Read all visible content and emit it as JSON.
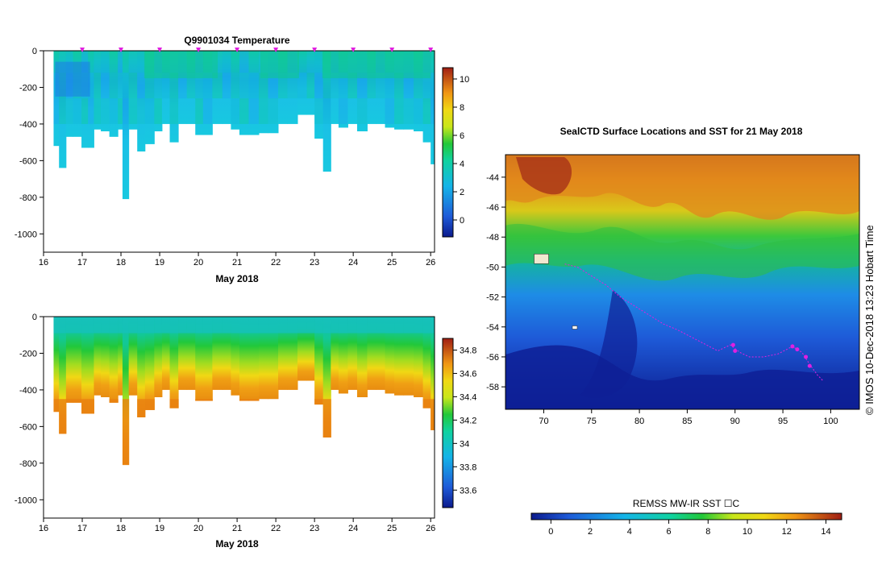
{
  "chart_data": [
    {
      "type": "heatmap",
      "title": "Q9901034  Temperature",
      "xlabel": "May 2018",
      "ylabel": "",
      "xlim": [
        16,
        26.1
      ],
      "ylim": [
        -1100,
        0
      ],
      "xticks": [
        "16",
        "17",
        "18",
        "19",
        "20",
        "21",
        "22",
        "23",
        "24",
        "25",
        "26"
      ],
      "yticks": [
        "0",
        "-200",
        "-400",
        "-600",
        "-800",
        "-1000"
      ],
      "colorbar": {
        "range": [
          -1.2,
          10.8
        ],
        "ticks": [
          "0",
          "2",
          "4",
          "6",
          "8",
          "10"
        ]
      },
      "profile_times": [
        16.26,
        16.4,
        16.58,
        16.76,
        16.98,
        17.15,
        17.3,
        17.48,
        17.7,
        17.92,
        18.04,
        18.2,
        18.42,
        18.62,
        18.86,
        19.06,
        19.26,
        19.48,
        19.7,
        19.92,
        20.12,
        20.36,
        20.62,
        20.84,
        21.06,
        21.3,
        21.56,
        21.8,
        22.06,
        22.3,
        22.56,
        22.8,
        23.0,
        23.22,
        23.42,
        23.62,
        23.86,
        24.1,
        24.36,
        24.58,
        24.82,
        25.06,
        25.3,
        25.56,
        25.8,
        26.0
      ],
      "max_depths": [
        -520,
        -640,
        -470,
        -470,
        -530,
        -530,
        -430,
        -440,
        -470,
        -430,
        -810,
        -430,
        -550,
        -510,
        -440,
        -400,
        -500,
        -400,
        -400,
        -460,
        -460,
        -400,
        -400,
        -430,
        -460,
        -460,
        -450,
        -450,
        -400,
        -400,
        -350,
        -350,
        -480,
        -660,
        -400,
        -420,
        -400,
        -440,
        -400,
        -400,
        -420,
        -430,
        -430,
        -440,
        -500,
        -620
      ],
      "surface_markers": [
        17,
        18,
        19,
        20,
        21,
        22,
        23,
        24,
        25,
        26
      ]
    },
    {
      "type": "heatmap",
      "title": "",
      "xlabel": "May 2018",
      "ylabel": "",
      "xlim": [
        16,
        26.1
      ],
      "ylim": [
        -1100,
        0
      ],
      "xticks": [
        "16",
        "17",
        "18",
        "19",
        "20",
        "21",
        "22",
        "23",
        "24",
        "25",
        "26"
      ],
      "yticks": [
        "0",
        "-200",
        "-400",
        "-600",
        "-800",
        "-1000"
      ],
      "colorbar": {
        "range": [
          33.45,
          34.9
        ],
        "ticks": [
          "33.6",
          "33.8",
          "34",
          "34.2",
          "34.4",
          "34.6",
          "34.8"
        ]
      }
    },
    {
      "type": "heatmap",
      "title": "SealCTD Surface Locations and SST for 21 May 2018",
      "xlabel": "",
      "ylabel": "",
      "xlim": [
        66,
        103
      ],
      "ylim": [
        -59.5,
        -42.5
      ],
      "xticks": [
        "70",
        "75",
        "80",
        "85",
        "90",
        "95",
        "100"
      ],
      "yticks": [
        "-44",
        "-46",
        "-48",
        "-50",
        "-52",
        "-54",
        "-56",
        "-58"
      ],
      "colorbar": {
        "label": "REMSS MW-IR SST ☐C",
        "range": [
          -1,
          14.8
        ],
        "ticks": [
          "0",
          "2",
          "4",
          "6",
          "8",
          "10",
          "12",
          "14"
        ]
      },
      "track": [
        [
          72.2,
          -49.8
        ],
        [
          73.5,
          -50.0
        ],
        [
          75,
          -50.6
        ],
        [
          76.5,
          -51.2
        ],
        [
          78,
          -52
        ],
        [
          79.5,
          -52.6
        ],
        [
          81,
          -53.2
        ],
        [
          82.5,
          -53.8
        ],
        [
          84,
          -54.2
        ],
        [
          85.5,
          -54.7
        ],
        [
          87,
          -55.2
        ],
        [
          88.2,
          -55.6
        ],
        [
          89.5,
          -55.2
        ],
        [
          90.5,
          -55.7
        ],
        [
          91.5,
          -56.0
        ],
        [
          93,
          -56.0
        ],
        [
          94.5,
          -55.8
        ],
        [
          96,
          -55.3
        ],
        [
          97,
          -55.7
        ],
        [
          97.8,
          -56.5
        ],
        [
          98.6,
          -57.2
        ],
        [
          99.2,
          -57.6
        ]
      ],
      "track_points": [
        [
          89.8,
          -55.2
        ],
        [
          90.0,
          -55.6
        ],
        [
          96.0,
          -55.3
        ],
        [
          96.5,
          -55.5
        ],
        [
          97.4,
          -56.0
        ],
        [
          97.8,
          -56.6
        ]
      ],
      "island_label_points": [
        [
          69.5,
          -49.4
        ],
        [
          73.5,
          -54.2
        ]
      ],
      "credit": "©  IMOS 10-Dec-2018 13:23 Hobart Time"
    }
  ]
}
